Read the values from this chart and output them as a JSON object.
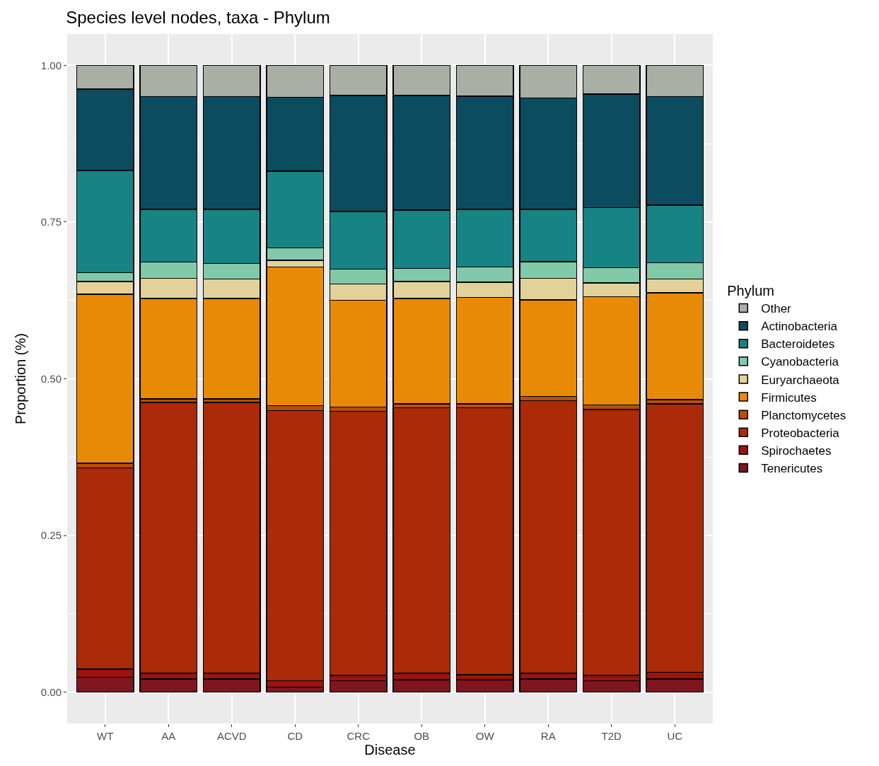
{
  "chart_data": {
    "type": "bar",
    "stacked": true,
    "title": "Species level nodes, taxa - Phylum",
    "xlabel": "Disease",
    "ylabel": "Proportion (%)",
    "legend_title": "Phylum",
    "legend": "right",
    "grid": true,
    "categories": [
      "WT",
      "AA",
      "ACVD",
      "CD",
      "CRC",
      "OB",
      "OW",
      "RA",
      "T2D",
      "UC"
    ],
    "ylim": [
      -0.05,
      1.05
    ],
    "yticks": [
      {
        "value": 0,
        "label": "0.00"
      },
      {
        "value": 0.25,
        "label": "0.25"
      },
      {
        "value": 0.5,
        "label": "0.50"
      },
      {
        "value": 0.75,
        "label": "0.75"
      },
      {
        "value": 1,
        "label": "1.00"
      }
    ],
    "series": [
      {
        "name": "Tenericutes",
        "color": "#801520",
        "values": [
          0.024,
          0.021,
          0.021,
          0.008,
          0.018,
          0.02,
          0.02,
          0.021,
          0.018,
          0.021
        ]
      },
      {
        "name": "Spirochaetes",
        "color": "#9a140e",
        "values": [
          0.013,
          0.009,
          0.009,
          0.01,
          0.009,
          0.01,
          0.008,
          0.009,
          0.009,
          0.011
        ]
      },
      {
        "name": "Proteobacteria",
        "color": "#ab2a07",
        "values": [
          0.321,
          0.432,
          0.432,
          0.431,
          0.421,
          0.424,
          0.426,
          0.435,
          0.424,
          0.428
        ]
      },
      {
        "name": "Planctomycetes",
        "color": "#b84d0a",
        "values": [
          0.007,
          0.006,
          0.006,
          0.008,
          0.007,
          0.006,
          0.006,
          0.007,
          0.007,
          0.007
        ]
      },
      {
        "name": "Firmicutes",
        "color": "#e98a07",
        "values": [
          0.27,
          0.16,
          0.16,
          0.221,
          0.17,
          0.168,
          0.17,
          0.154,
          0.173,
          0.17
        ]
      },
      {
        "name": "Euryarchaeota",
        "color": "#e2d29a",
        "values": [
          0.02,
          0.032,
          0.031,
          0.011,
          0.026,
          0.027,
          0.024,
          0.034,
          0.022,
          0.022
        ]
      },
      {
        "name": "Cyanobacteria",
        "color": "#82c9a9",
        "values": [
          0.014,
          0.026,
          0.025,
          0.02,
          0.024,
          0.021,
          0.024,
          0.027,
          0.024,
          0.026
        ]
      },
      {
        "name": "Bacteroidetes",
        "color": "#168385",
        "values": [
          0.163,
          0.084,
          0.086,
          0.122,
          0.092,
          0.093,
          0.092,
          0.083,
          0.096,
          0.092
        ]
      },
      {
        "name": "Actinobacteria",
        "color": "#0b4c5f",
        "values": [
          0.13,
          0.18,
          0.18,
          0.118,
          0.185,
          0.183,
          0.181,
          0.178,
          0.181,
          0.173
        ]
      },
      {
        "name": "Other",
        "color": "#a9afa5",
        "values": [
          0.038,
          0.05,
          0.05,
          0.051,
          0.048,
          0.048,
          0.049,
          0.052,
          0.046,
          0.05
        ]
      }
    ]
  }
}
